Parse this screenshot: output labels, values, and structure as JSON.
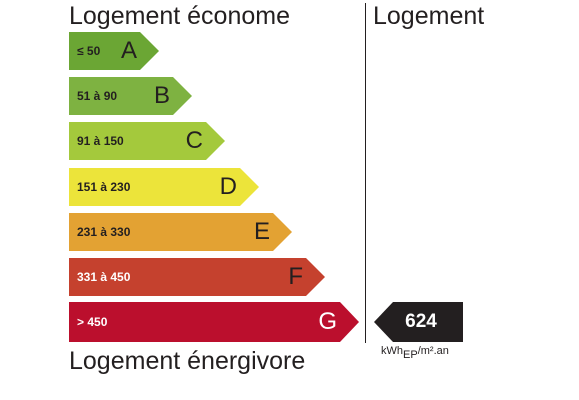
{
  "labels": {
    "top_left": "Logement économe",
    "top_right": "Logement",
    "bottom_left": "Logement énergivore"
  },
  "bands": [
    {
      "range": "≤ 50",
      "letter": "A",
      "color": "#6ba634"
    },
    {
      "range": "51 à 90",
      "letter": "B",
      "color": "#7eb241"
    },
    {
      "range": "91 à 150",
      "letter": "C",
      "color": "#a4c93c"
    },
    {
      "range": "151 à 230",
      "letter": "D",
      "color": "#ece43a"
    },
    {
      "range": "231 à 330",
      "letter": "E",
      "color": "#e3a233"
    },
    {
      "range": "331 à 450",
      "letter": "F",
      "color": "#c5412e"
    },
    {
      "range": "> 450",
      "letter": "G",
      "color": "#bb0f2d"
    }
  ],
  "indicator": {
    "value": "624",
    "color": "#231f20",
    "unit_base": "kWh",
    "unit_sub": "EP",
    "unit_tail": "/m².an"
  }
}
